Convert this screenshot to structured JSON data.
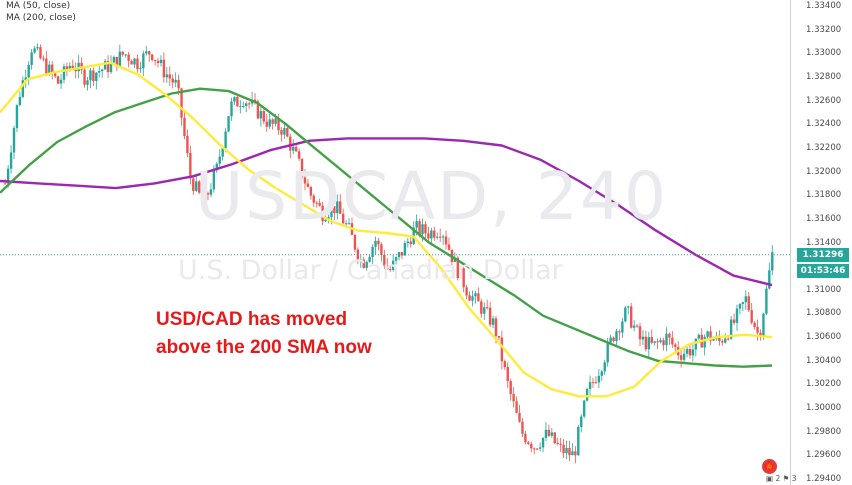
{
  "indicators": {
    "ma50_label": "MA (50, close)",
    "ma200_label": "MA (200, close)"
  },
  "watermark": {
    "symbol": "USDCAD, 240",
    "name": "U.S. Dollar / Canadian Dollar"
  },
  "annotation": {
    "line1": "USD/CAD has moved",
    "line2": "above the 200 SMA now"
  },
  "price_axis": {
    "ticks": [
      "1.33400",
      "1.33200",
      "1.33000",
      "1.32800",
      "1.32600",
      "1.32400",
      "1.32200",
      "1.32000",
      "1.31800",
      "1.31600",
      "1.31400",
      "1.31000",
      "1.30800",
      "1.30600",
      "1.30400",
      "1.30200",
      "1.30000",
      "1.29800",
      "1.29600",
      "1.29400"
    ],
    "last_price": "1.31296",
    "countdown": "01:53:46"
  },
  "events": {
    "label": "2",
    "label2": "3"
  },
  "colors": {
    "up": "#26a69a",
    "down": "#ef5350",
    "ma50": "#ffeb3b",
    "ma200_green": "#43a047",
    "ma_purple": "#9c27b0",
    "annotation": "#e51b1b"
  },
  "chart_data": {
    "type": "candlestick",
    "symbol": "USDCAD",
    "timeframe": "240",
    "y_range": [
      1.2935,
      1.3345
    ],
    "close_path": [
      1.319,
      1.3262,
      1.3305,
      1.329,
      1.3275,
      1.3292,
      1.328,
      1.3285,
      1.329,
      1.33,
      1.3292,
      1.3302,
      1.3285,
      1.3272,
      1.3195,
      1.3172,
      1.3202,
      1.3255,
      1.3262,
      1.3252,
      1.324,
      1.3236,
      1.3212,
      1.3182,
      1.3165,
      1.317,
      1.315,
      1.3122,
      1.3142,
      1.3115,
      1.3132,
      1.3152,
      1.3148,
      1.3152,
      1.3122,
      1.3098,
      1.3085,
      1.307,
      1.302,
      1.298,
      1.2968,
      1.2978,
      1.2965,
      1.296,
      1.3012,
      1.3035,
      1.3062,
      1.3082,
      1.3058,
      1.3052,
      1.306,
      1.3046,
      1.305,
      1.3062,
      1.3056,
      1.307,
      1.3092,
      1.306,
      1.313
    ],
    "ma50": [
      1.325,
      1.3278,
      1.3284,
      1.3288,
      1.3292,
      1.3282,
      1.3265,
      1.3245,
      1.3222,
      1.3202,
      1.3186,
      1.3172,
      1.3158,
      1.315,
      1.3148,
      1.3145,
      1.3118,
      1.3085,
      1.3058,
      1.303,
      1.3016,
      1.301,
      1.301,
      1.3018,
      1.304,
      1.3054,
      1.306,
      1.3062,
      1.306
    ],
    "ma200_green": [
      1.3182,
      1.3205,
      1.3225,
      1.3238,
      1.325,
      1.3258,
      1.3266,
      1.327,
      1.3268,
      1.3258,
      1.324,
      1.322,
      1.32,
      1.318,
      1.316,
      1.314,
      1.3125,
      1.311,
      1.3095,
      1.3078,
      1.3068,
      1.3058,
      1.3048,
      1.304,
      1.3038,
      1.3036,
      1.3035,
      1.3036
    ],
    "ma_purple": [
      1.3192,
      1.319,
      1.3188,
      1.3186,
      1.319,
      1.3196,
      1.3206,
      1.3218,
      1.3226,
      1.3228,
      1.3228,
      1.3228,
      1.3226,
      1.3222,
      1.321,
      1.3192,
      1.3172,
      1.315,
      1.313,
      1.3112,
      1.3104
    ]
  }
}
